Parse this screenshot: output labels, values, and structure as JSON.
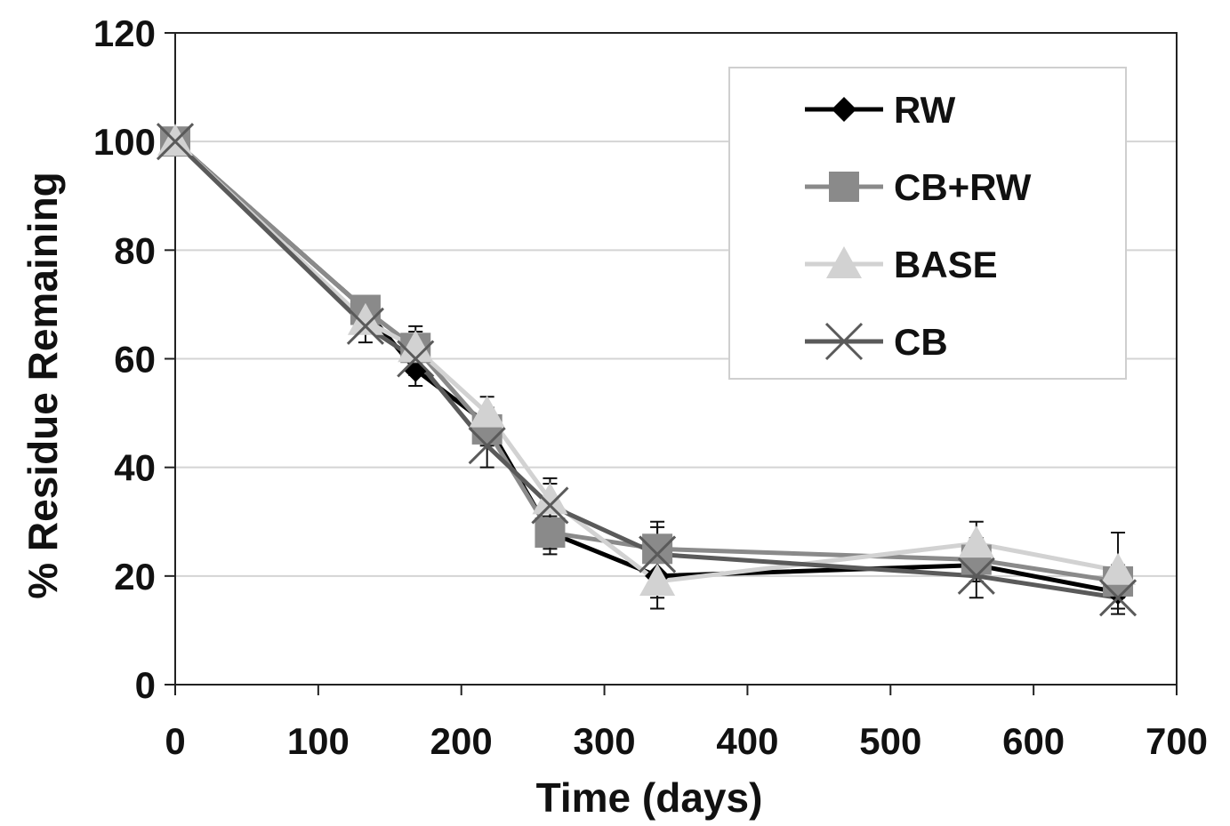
{
  "chart_data": {
    "type": "line",
    "xlabel": "Time (days)",
    "ylabel": "% Residue Remaining",
    "xlim": [
      0,
      700
    ],
    "ylim": [
      0,
      120
    ],
    "x_ticks": [
      0,
      100,
      200,
      300,
      400,
      500,
      600,
      700
    ],
    "y_ticks": [
      0,
      20,
      40,
      60,
      80,
      100,
      120
    ],
    "grid": "horizontal",
    "legend_position": "top-right",
    "x": [
      0,
      133,
      168,
      218,
      262,
      337,
      560,
      659
    ],
    "series": [
      {
        "name": "RW",
        "marker": "diamond",
        "color": "#000000",
        "values": [
          100,
          69,
          58,
          48,
          28,
          20,
          22,
          17
        ],
        "errors": [
          0,
          2,
          3,
          3,
          3,
          4,
          3,
          3
        ]
      },
      {
        "name": "CB+RW",
        "marker": "square",
        "color": "#8a8a8a",
        "values": [
          100,
          69,
          62,
          47,
          28,
          25,
          23,
          19
        ],
        "errors": [
          0,
          2,
          3,
          3,
          4,
          5,
          4,
          3
        ]
      },
      {
        "name": "BASE",
        "marker": "triangle",
        "color": "#d2d2d2",
        "values": [
          100,
          67,
          62,
          50,
          34,
          19,
          26,
          21
        ],
        "errors": [
          0,
          2,
          4,
          3,
          4,
          5,
          4,
          7
        ]
      },
      {
        "name": "CB",
        "marker": "x",
        "color": "#5a5a5a",
        "values": [
          100,
          66,
          60,
          44,
          33,
          24,
          20,
          16
        ],
        "errors": [
          0,
          3,
          3,
          4,
          4,
          5,
          4,
          3
        ]
      }
    ]
  }
}
